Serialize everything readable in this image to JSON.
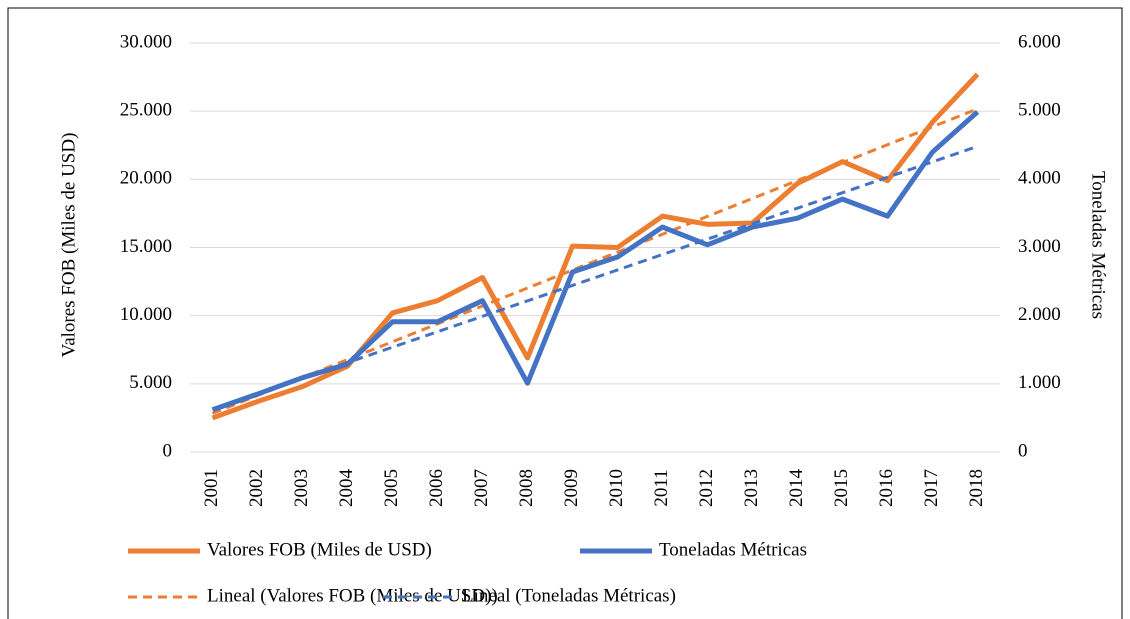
{
  "chart_data": {
    "type": "line",
    "y_label": "Valores FOB (Miles de USD)",
    "y2_label": "Toneladas Métricas",
    "categories": [
      "2001",
      "2002",
      "2003",
      "2004",
      "2005",
      "2006",
      "2007",
      "2008",
      "2009",
      "2010",
      "2011",
      "2012",
      "2013",
      "2014",
      "2015",
      "2016",
      "2017",
      "2018"
    ],
    "series": [
      {
        "name": "Valores FOB (Miles de USD)",
        "color": "#ed7d31",
        "axis": "y",
        "trendline": "linear",
        "trendline_name": "Lineal (Valores FOB (Miles de USD))",
        "values": [
          2500,
          3700,
          4800,
          6300,
          10200,
          11100,
          12800,
          6900,
          15100,
          15000,
          17300,
          16700,
          16800,
          19700,
          21300,
          19900,
          24200,
          27700
        ]
      },
      {
        "name": "Toneladas Métricas",
        "color": "#4472c4",
        "axis": "y2",
        "trendline": "linear",
        "trendline_name": "Lineal (Toneladas Métricas)",
        "values": [
          620,
          850,
          1090,
          1290,
          1910,
          1910,
          2220,
          1010,
          2640,
          2860,
          3300,
          3040,
          3300,
          3430,
          3710,
          3460,
          4400,
          4990
        ]
      }
    ],
    "ylim": [
      0,
      30000
    ],
    "yticks": [
      0,
      {
        "value": 5000,
        "label": "5.000"
      },
      {
        "value": 10000,
        "label": "10.000"
      },
      {
        "value": 15000,
        "label": "15.000"
      },
      {
        "value": 20000,
        "label": "20.000"
      },
      {
        "value": 25000,
        "label": "25.000"
      },
      {
        "value": 30000,
        "label": "30.000"
      }
    ],
    "y2lim": [
      0,
      6000
    ],
    "y2ticks": [
      0,
      {
        "value": 1000,
        "label": "1.000"
      },
      {
        "value": 2000,
        "label": "2.000"
      },
      {
        "value": 3000,
        "label": "3.000"
      },
      {
        "value": 4000,
        "label": "4.000"
      },
      {
        "value": 5000,
        "label": "5.000"
      },
      {
        "value": 6000,
        "label": "6.000"
      }
    ],
    "grid": true,
    "legend": "bottom"
  }
}
